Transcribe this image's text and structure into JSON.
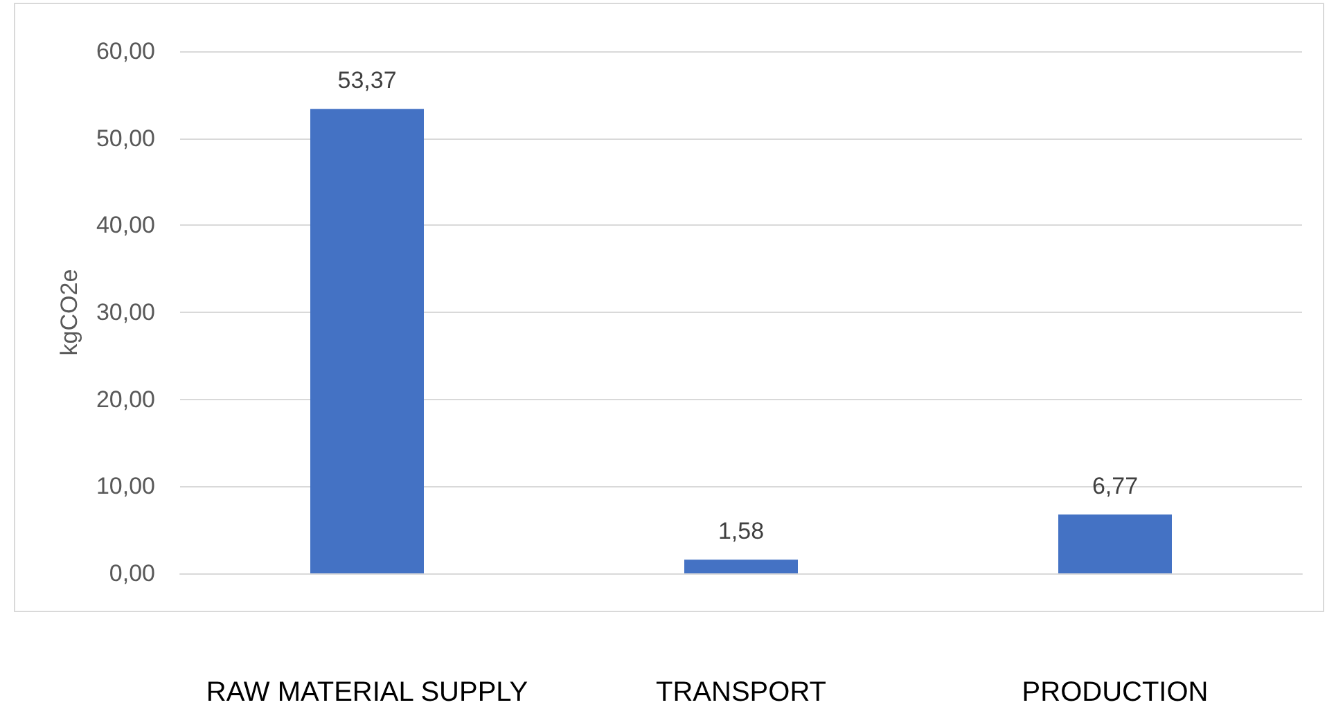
{
  "chart_data": {
    "type": "bar",
    "ylabel": "kgCO2e",
    "categories": [
      "RAW MATERIAL SUPPLY",
      "TRANSPORT",
      "PRODUCTION"
    ],
    "values": [
      53.37,
      1.58,
      6.77
    ],
    "color": "#4472c4",
    "value_labels": [
      "53,37",
      "1,58",
      "6,77"
    ],
    "ylim": [
      0,
      60
    ],
    "yticks": [
      {
        "value": 0,
        "label": "0,00"
      },
      {
        "value": 10,
        "label": "10,00"
      },
      {
        "value": 20,
        "label": "20,00"
      },
      {
        "value": 30,
        "label": "30,00"
      },
      {
        "value": 40,
        "label": "40,00"
      },
      {
        "value": 50,
        "label": "50,00"
      },
      {
        "value": 60,
        "label": "60,00"
      }
    ],
    "grid": "y"
  }
}
